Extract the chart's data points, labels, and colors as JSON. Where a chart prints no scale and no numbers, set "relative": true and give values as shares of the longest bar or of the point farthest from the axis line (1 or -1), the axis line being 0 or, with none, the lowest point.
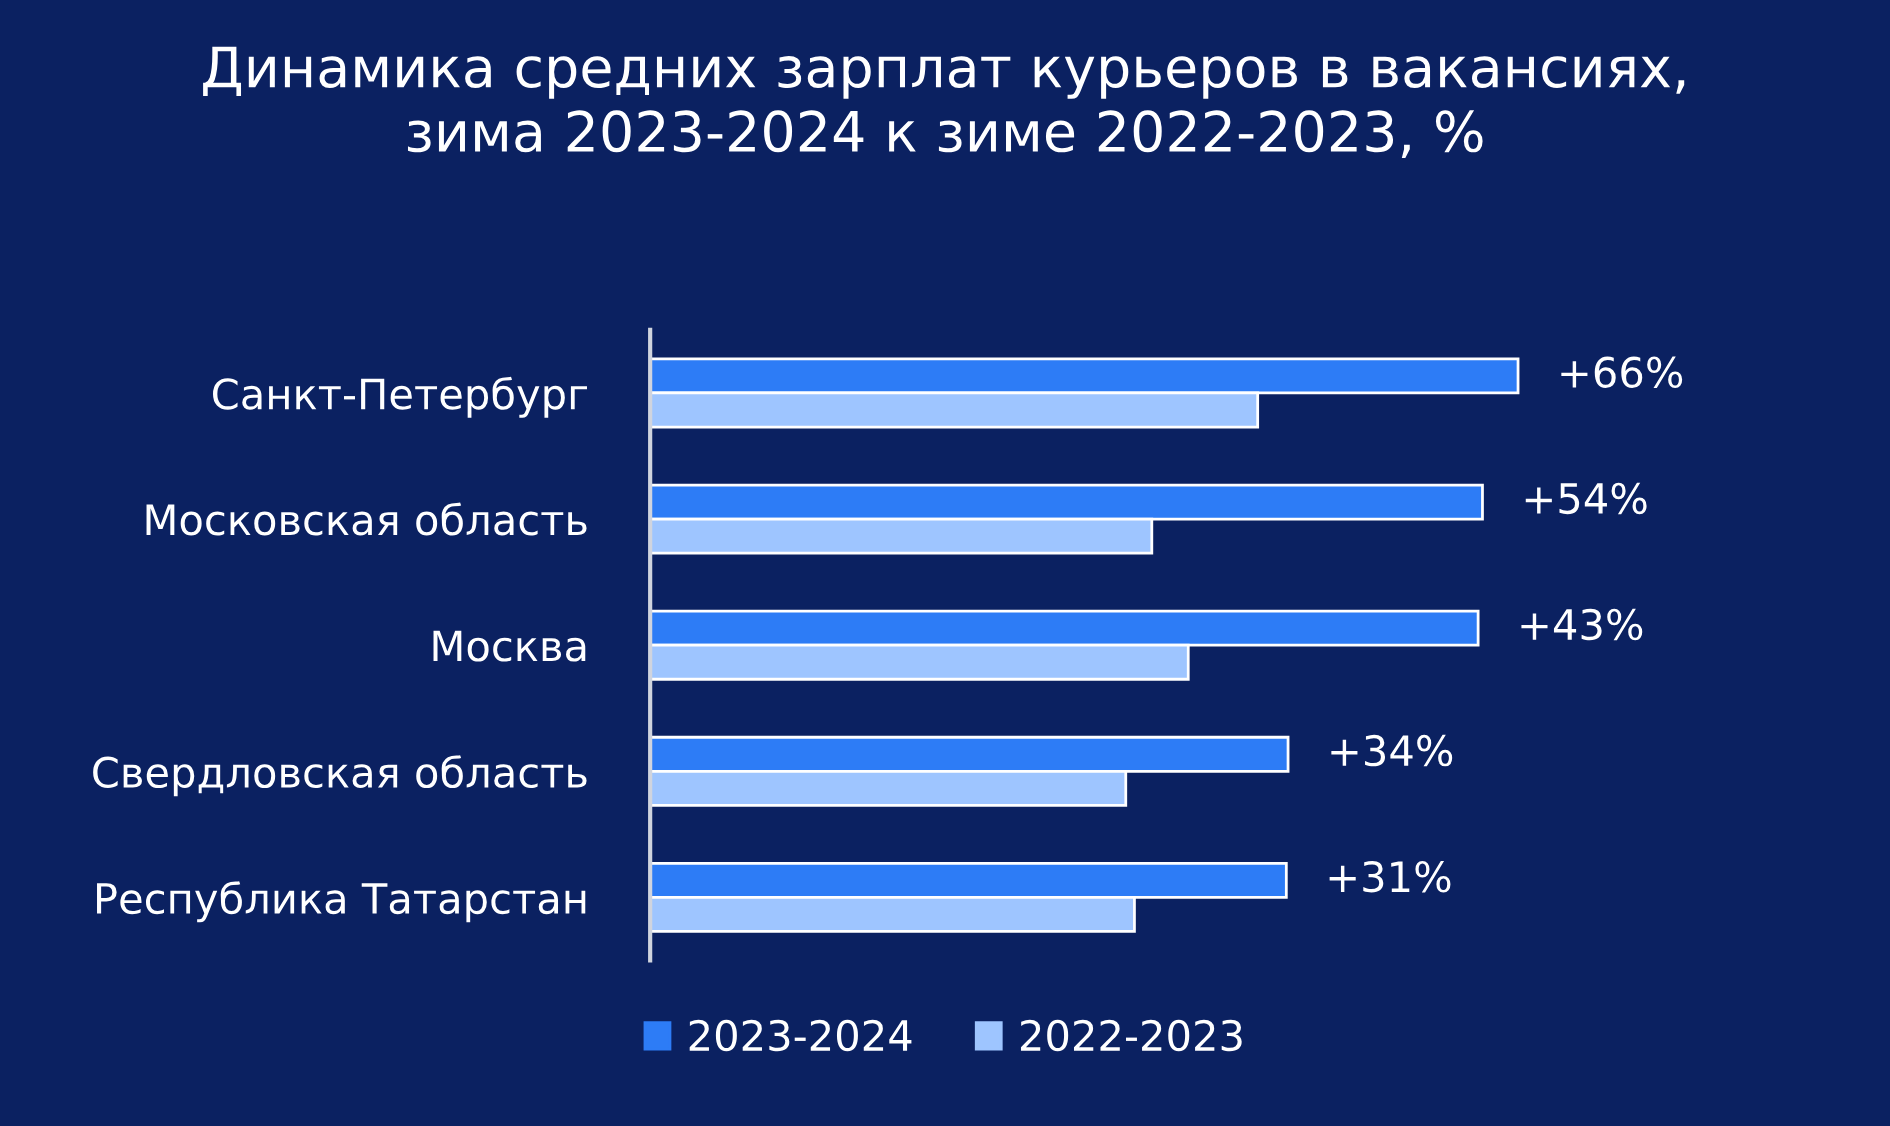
{
  "chart_data": {
    "type": "bar",
    "orientation": "horizontal",
    "relative": true,
    "title": "Динамика средних зарплат курьеров в вакансиях,\nзима 2023-2024 к зиме 2022-2023, %",
    "categories": [
      "Санкт-Петербург",
      "Московская область",
      "Москва",
      "Свердловская область",
      "Республика Татарстан"
    ],
    "series": [
      {
        "name": "2023-2024",
        "color": "#2d7cf6",
        "values": [
          1.0,
          0.959,
          0.954,
          0.735,
          0.733
        ]
      },
      {
        "name": "2022-2023",
        "color": "#9ec5ff",
        "values": [
          0.7,
          0.578,
          0.62,
          0.548,
          0.558
        ]
      }
    ],
    "annotations": [
      {
        "text": "+66%",
        "x": 1.0,
        "y": "Санкт-Петербург"
      },
      {
        "text": "+54%",
        "x": 0.959,
        "y": "Московская область"
      },
      {
        "text": "+43%",
        "x": 0.954,
        "y": "Москва"
      },
      {
        "text": "+34%",
        "x": 0.735,
        "y": "Свердловская область"
      },
      {
        "text": "+31%",
        "x": 0.733,
        "y": "Республика Татарстан"
      }
    ],
    "legend": "bottom",
    "grid": false
  }
}
